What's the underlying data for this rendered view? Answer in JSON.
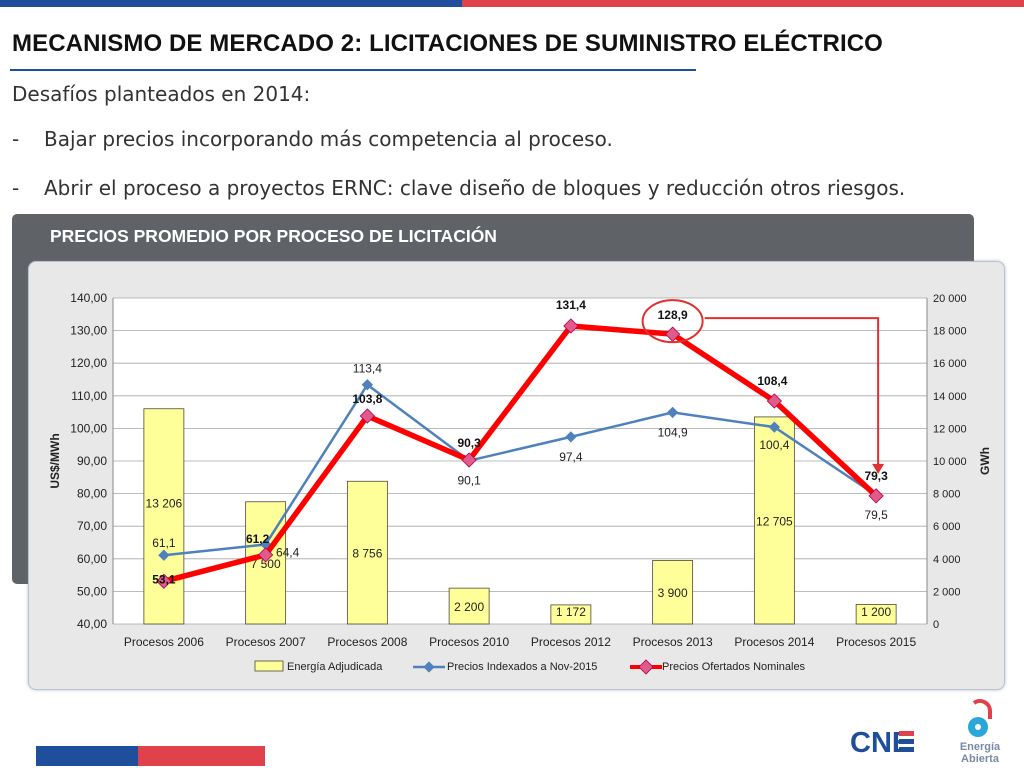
{
  "slide": {
    "title": "MECANISMO DE MERCADO 2: LICITACIONES DE SUMINISTRO ELÉCTRICO",
    "intro": "Desafíos planteados en 2014:",
    "bullets": [
      {
        "dash": "-",
        "text": "Bajar precios incorporando más competencia al proceso."
      },
      {
        "dash": "-",
        "text": "Abrir el proceso a proyectos ERNC: clave diseño de bloques y reducción otros riesgos."
      }
    ],
    "panel_title": "PRECIOS PROMEDIO POR PROCESO DE LICITACIÓN"
  },
  "logos": {
    "cne": "CNE",
    "energia_abierta": [
      "Energía",
      "Abierta"
    ]
  },
  "colors": {
    "brand_blue": "#1f4e9c",
    "brand_red": "#e0424b",
    "bar_fill": "#ffff99",
    "bar_stroke": "#4a4a3a",
    "indexed_line": "#4f81bd",
    "nominal_line": "#ff0000",
    "annotation": "#e03030"
  },
  "chart_data": {
    "type": "bar",
    "categories": [
      "Procesos 2006",
      "Procesos 2007",
      "Procesos 2008",
      "Procesos 2010",
      "Procesos 2012",
      "Procesos 2013",
      "Procesos 2014",
      "Procesos 2015"
    ],
    "ylabel": "US$/MWh",
    "y2label": "GWh",
    "ylim": [
      40,
      140
    ],
    "y2lim": [
      0,
      20000
    ],
    "yticks": [
      "40,00",
      "50,00",
      "60,00",
      "70,00",
      "80,00",
      "90,00",
      "100,00",
      "110,00",
      "120,00",
      "130,00",
      "140,00"
    ],
    "y2ticks": [
      "0",
      "2 000",
      "4 000",
      "6 000",
      "8 000",
      "10 000",
      "12 000",
      "14 000",
      "16 000",
      "18 000",
      "20 000"
    ],
    "grid": true,
    "legend_position": "bottom",
    "series": [
      {
        "name": "Energía Adjudicada",
        "type": "bar",
        "axis": "y2",
        "values": [
          13206,
          7500,
          8756,
          2200,
          1172,
          3900,
          12705,
          1200
        ],
        "labels": [
          "13 206",
          "7 500",
          "8 756",
          "2 200",
          "1 172",
          "3 900",
          "12 705",
          "1 200"
        ]
      },
      {
        "name": "Precios Indexados a Nov-2015",
        "type": "line",
        "axis": "y",
        "values": [
          61.1,
          64.4,
          113.4,
          90.1,
          97.4,
          104.9,
          100.4,
          79.5
        ],
        "labels": [
          "61,1",
          "64,4",
          "113,4",
          "90,1",
          "97,4",
          "104,9",
          "100,4",
          "79,5"
        ]
      },
      {
        "name": "Precios Ofertados Nominales",
        "type": "line",
        "axis": "y",
        "values": [
          53.1,
          61.2,
          103.8,
          90.3,
          131.4,
          128.9,
          108.4,
          79.3
        ],
        "labels": [
          "53,1",
          "61,2",
          "103,8",
          "90,3",
          "131,4",
          "128,9",
          "108,4",
          "79,3"
        ]
      }
    ],
    "annotations": [
      {
        "type": "circle",
        "target": "Procesos 2013 / 128,9"
      },
      {
        "type": "arrow",
        "from": "Procesos 2013 / 128,9",
        "to": "Procesos 2015 / 79,3"
      }
    ]
  }
}
